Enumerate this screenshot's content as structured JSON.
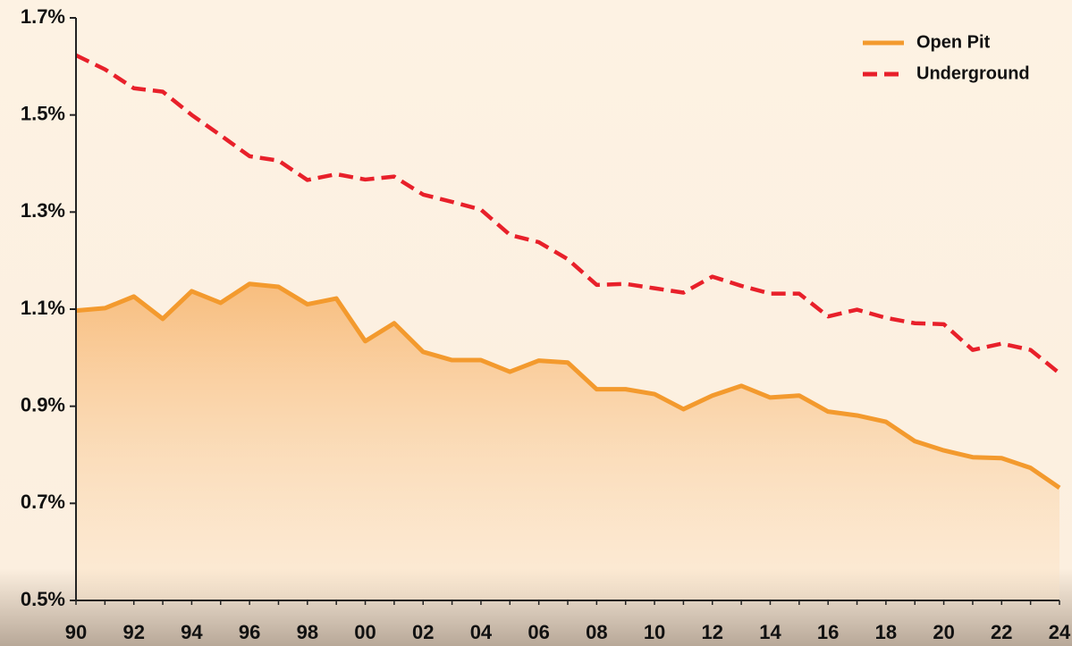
{
  "chart_data": {
    "type": "line",
    "categories": [
      "90",
      null,
      "92",
      null,
      "94",
      null,
      "96",
      null,
      "98",
      null,
      "00",
      null,
      "02",
      null,
      "04",
      null,
      "06",
      null,
      "08",
      null,
      "10",
      null,
      "12",
      null,
      "14",
      null,
      "16",
      null,
      "18",
      null,
      "20",
      null,
      "22",
      null,
      "24"
    ],
    "series": [
      {
        "name": "Open Pit",
        "color": "#f39a2e",
        "fill": true,
        "values": [
          1.097,
          1.102,
          1.126,
          1.08,
          1.137,
          1.113,
          1.152,
          1.146,
          1.11,
          1.122,
          1.034,
          1.071,
          1.012,
          0.995,
          0.995,
          0.971,
          0.994,
          0.99,
          0.935,
          0.935,
          0.925,
          0.894,
          0.922,
          0.942,
          0.918,
          0.922,
          0.889,
          0.881,
          0.868,
          0.828,
          0.809,
          0.795,
          0.793,
          0.773,
          0.732
        ]
      },
      {
        "name": "Underground",
        "color": "#e8202a",
        "dashed": true,
        "values": [
          1.623,
          1.594,
          1.555,
          1.548,
          1.5,
          1.458,
          1.415,
          1.406,
          1.366,
          1.378,
          1.367,
          1.373,
          1.336,
          1.321,
          1.305,
          1.253,
          1.238,
          1.203,
          1.15,
          1.152,
          1.143,
          1.134,
          1.167,
          1.148,
          1.132,
          1.132,
          1.085,
          1.099,
          1.082,
          1.071,
          1.069,
          1.016,
          1.029,
          1.016,
          0.968
        ]
      }
    ],
    "ylim": [
      0.5,
      1.7
    ],
    "yticks": [
      {
        "value": 0.5,
        "label": "0.5%"
      },
      {
        "value": 0.7,
        "label": "0.7%"
      },
      {
        "value": 0.9,
        "label": "0.9%"
      },
      {
        "value": 1.1,
        "label": "1.1%"
      },
      {
        "value": 1.3,
        "label": "1.3%"
      },
      {
        "value": 1.5,
        "label": "1.5%"
      },
      {
        "value": 1.7,
        "label": "1.7%"
      }
    ],
    "grid": false,
    "legend": "upper right"
  }
}
